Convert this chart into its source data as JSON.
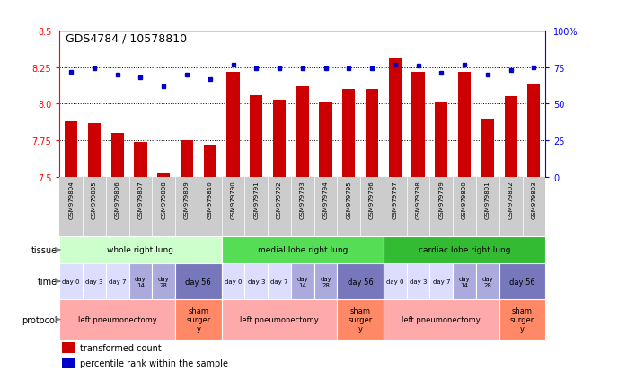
{
  "title": "GDS4784 / 10578810",
  "samples": [
    "GSM979804",
    "GSM979805",
    "GSM979806",
    "GSM979807",
    "GSM979808",
    "GSM979809",
    "GSM979810",
    "GSM979790",
    "GSM979791",
    "GSM979792",
    "GSM979793",
    "GSM979794",
    "GSM979795",
    "GSM979796",
    "GSM979797",
    "GSM979798",
    "GSM979799",
    "GSM979800",
    "GSM979801",
    "GSM979802",
    "GSM979803"
  ],
  "red_values": [
    7.88,
    7.87,
    7.8,
    7.74,
    7.52,
    7.75,
    7.72,
    8.22,
    8.06,
    8.03,
    8.12,
    8.01,
    8.1,
    8.1,
    8.31,
    8.22,
    8.01,
    8.22,
    7.9,
    8.05,
    8.14
  ],
  "blue_values": [
    72,
    74,
    70,
    68,
    62,
    70,
    67,
    77,
    74,
    74,
    74,
    74,
    74,
    74,
    77,
    76,
    71,
    77,
    70,
    73,
    75
  ],
  "ylim_left": [
    7.5,
    8.5
  ],
  "ylim_right": [
    0,
    100
  ],
  "yticks_left": [
    7.5,
    7.75,
    8.0,
    8.25,
    8.5
  ],
  "yticks_right": [
    0,
    25,
    50,
    75,
    100
  ],
  "ytick_labels_right": [
    "0",
    "25",
    "50",
    "75",
    "100%"
  ],
  "bar_color": "#cc0000",
  "dot_color": "#0000cc",
  "sample_bg": "#cccccc",
  "tissue_groups": [
    {
      "label": "whole right lung",
      "start": 0,
      "end": 7,
      "color": "#ccffcc"
    },
    {
      "label": "medial lobe right lung",
      "start": 7,
      "end": 14,
      "color": "#55dd55"
    },
    {
      "label": "cardiac lobe right lung",
      "start": 14,
      "end": 21,
      "color": "#33bb33"
    }
  ],
  "time_groups": [
    {
      "label": "day 0",
      "start": 0,
      "end": 1,
      "color": "#ddddff"
    },
    {
      "label": "day 3",
      "start": 1,
      "end": 2,
      "color": "#ddddff"
    },
    {
      "label": "day 7",
      "start": 2,
      "end": 3,
      "color": "#ddddff"
    },
    {
      "label": "day\n14",
      "start": 3,
      "end": 4,
      "color": "#aaaadd"
    },
    {
      "label": "day\n28",
      "start": 4,
      "end": 5,
      "color": "#aaaadd"
    },
    {
      "label": "day 56",
      "start": 5,
      "end": 7,
      "color": "#7777bb"
    },
    {
      "label": "day 0",
      "start": 7,
      "end": 8,
      "color": "#ddddff"
    },
    {
      "label": "day 3",
      "start": 8,
      "end": 9,
      "color": "#ddddff"
    },
    {
      "label": "day 7",
      "start": 9,
      "end": 10,
      "color": "#ddddff"
    },
    {
      "label": "day\n14",
      "start": 10,
      "end": 11,
      "color": "#aaaadd"
    },
    {
      "label": "day\n28",
      "start": 11,
      "end": 12,
      "color": "#aaaadd"
    },
    {
      "label": "day 56",
      "start": 12,
      "end": 14,
      "color": "#7777bb"
    },
    {
      "label": "day 0",
      "start": 14,
      "end": 15,
      "color": "#ddddff"
    },
    {
      "label": "day 3",
      "start": 15,
      "end": 16,
      "color": "#ddddff"
    },
    {
      "label": "day 7",
      "start": 16,
      "end": 17,
      "color": "#ddddff"
    },
    {
      "label": "day\n14",
      "start": 17,
      "end": 18,
      "color": "#aaaadd"
    },
    {
      "label": "day\n28",
      "start": 18,
      "end": 19,
      "color": "#aaaadd"
    },
    {
      "label": "day 56",
      "start": 19,
      "end": 21,
      "color": "#7777bb"
    }
  ],
  "protocol_groups": [
    {
      "label": "left pneumonectomy",
      "start": 0,
      "end": 5,
      "color": "#ffaaaa"
    },
    {
      "label": "sham\nsurger\ny",
      "start": 5,
      "end": 7,
      "color": "#ff8866"
    },
    {
      "label": "left pneumonectomy",
      "start": 7,
      "end": 12,
      "color": "#ffaaaa"
    },
    {
      "label": "sham\nsurger\ny",
      "start": 12,
      "end": 14,
      "color": "#ff8866"
    },
    {
      "label": "left pneumonectomy",
      "start": 14,
      "end": 19,
      "color": "#ffaaaa"
    },
    {
      "label": "sham\nsurger\ny",
      "start": 19,
      "end": 21,
      "color": "#ff8866"
    }
  ],
  "row_labels": [
    "tissue",
    "time",
    "protocol"
  ],
  "legend_items": [
    {
      "label": "transformed count",
      "color": "#cc0000"
    },
    {
      "label": "percentile rank within the sample",
      "color": "#0000cc"
    }
  ]
}
